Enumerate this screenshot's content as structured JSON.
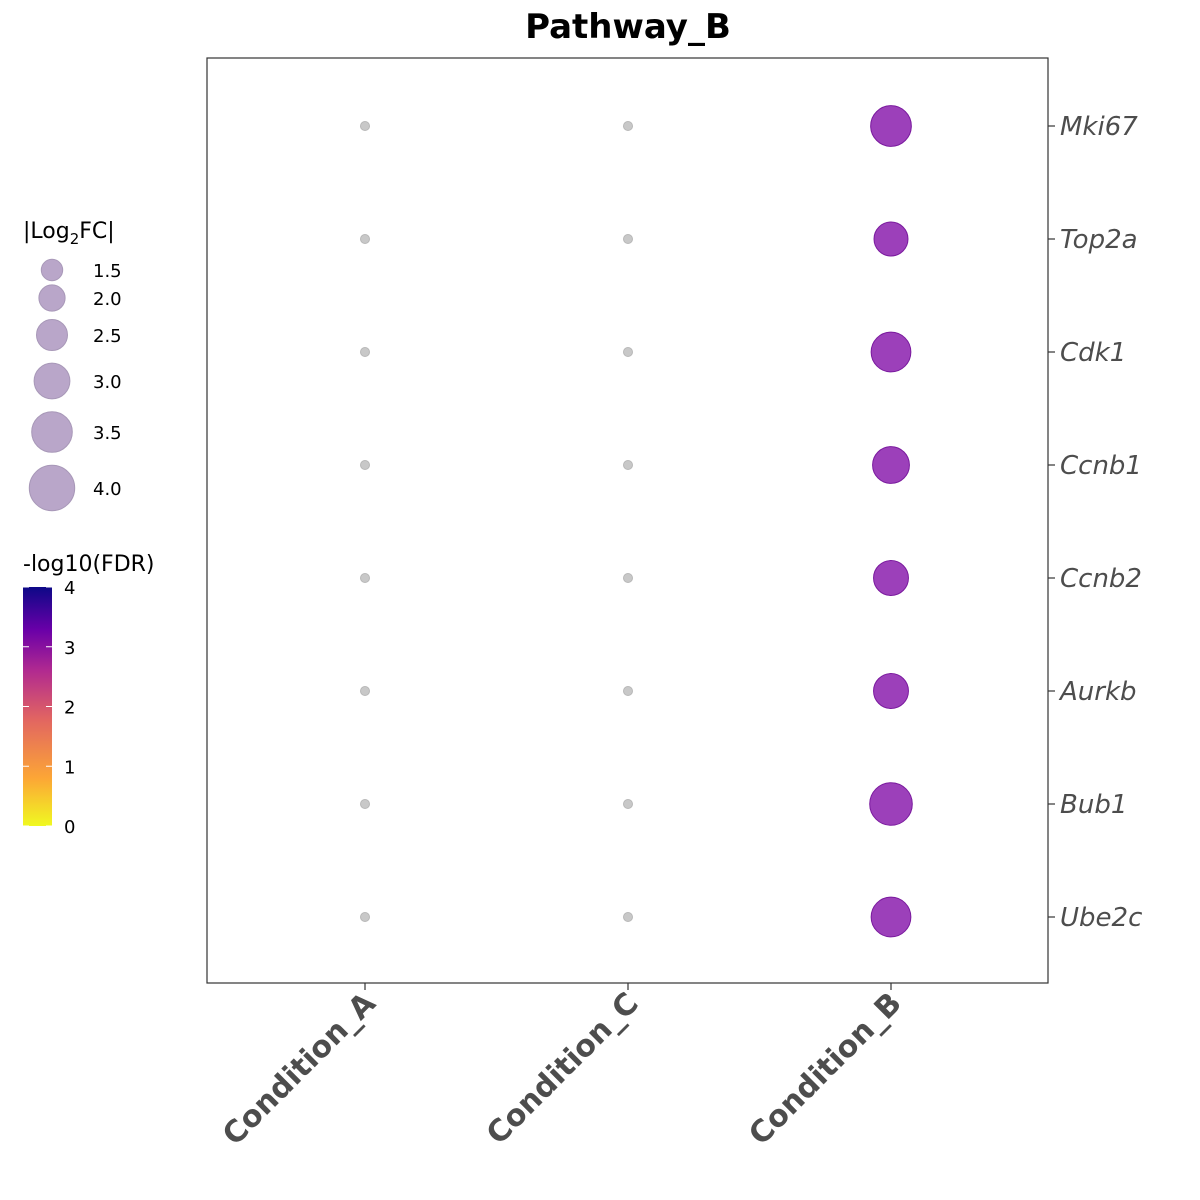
{
  "chart_data": {
    "type": "scatter",
    "title": "Pathway_B",
    "xlabel": "",
    "ylabel": "",
    "categories": [
      "Condition_A",
      "Condition_C",
      "Condition_B"
    ],
    "genes": [
      "Mki67",
      "Top2a",
      "Cdk1",
      "Ccnb1",
      "Ccnb2",
      "Aurkb",
      "Bub1",
      "Ube2c"
    ],
    "points": [
      {
        "gene": "Mki67",
        "condition": "Condition_A",
        "log2fc_abs": 0,
        "neg_log10_fdr": null
      },
      {
        "gene": "Mki67",
        "condition": "Condition_C",
        "log2fc_abs": 0,
        "neg_log10_fdr": null
      },
      {
        "gene": "Mki67",
        "condition": "Condition_B",
        "log2fc_abs": 3.3,
        "neg_log10_fdr": 3.0
      },
      {
        "gene": "Top2a",
        "condition": "Condition_A",
        "log2fc_abs": 0,
        "neg_log10_fdr": null
      },
      {
        "gene": "Top2a",
        "condition": "Condition_C",
        "log2fc_abs": 0,
        "neg_log10_fdr": null
      },
      {
        "gene": "Top2a",
        "condition": "Condition_B",
        "log2fc_abs": 2.6,
        "neg_log10_fdr": 3.0
      },
      {
        "gene": "Cdk1",
        "condition": "Condition_A",
        "log2fc_abs": 0,
        "neg_log10_fdr": null
      },
      {
        "gene": "Cdk1",
        "condition": "Condition_C",
        "log2fc_abs": 0,
        "neg_log10_fdr": null
      },
      {
        "gene": "Cdk1",
        "condition": "Condition_B",
        "log2fc_abs": 3.2,
        "neg_log10_fdr": 3.0
      },
      {
        "gene": "Ccnb1",
        "condition": "Condition_A",
        "log2fc_abs": 0,
        "neg_log10_fdr": null
      },
      {
        "gene": "Ccnb1",
        "condition": "Condition_C",
        "log2fc_abs": 0,
        "neg_log10_fdr": null
      },
      {
        "gene": "Ccnb1",
        "condition": "Condition_B",
        "log2fc_abs": 2.9,
        "neg_log10_fdr": 3.0
      },
      {
        "gene": "Ccnb2",
        "condition": "Condition_A",
        "log2fc_abs": 0,
        "neg_log10_fdr": null
      },
      {
        "gene": "Ccnb2",
        "condition": "Condition_C",
        "log2fc_abs": 0,
        "neg_log10_fdr": null
      },
      {
        "gene": "Ccnb2",
        "condition": "Condition_B",
        "log2fc_abs": 2.7,
        "neg_log10_fdr": 3.0
      },
      {
        "gene": "Aurkb",
        "condition": "Condition_A",
        "log2fc_abs": 0,
        "neg_log10_fdr": null
      },
      {
        "gene": "Aurkb",
        "condition": "Condition_C",
        "log2fc_abs": 0,
        "neg_log10_fdr": null
      },
      {
        "gene": "Aurkb",
        "condition": "Condition_B",
        "log2fc_abs": 2.7,
        "neg_log10_fdr": 3.0
      },
      {
        "gene": "Bub1",
        "condition": "Condition_A",
        "log2fc_abs": 0,
        "neg_log10_fdr": null
      },
      {
        "gene": "Bub1",
        "condition": "Condition_C",
        "log2fc_abs": 0,
        "neg_log10_fdr": null
      },
      {
        "gene": "Bub1",
        "condition": "Condition_B",
        "log2fc_abs": 3.5,
        "neg_log10_fdr": 3.0
      },
      {
        "gene": "Ube2c",
        "condition": "Condition_A",
        "log2fc_abs": 0,
        "neg_log10_fdr": null
      },
      {
        "gene": "Ube2c",
        "condition": "Condition_C",
        "log2fc_abs": 0,
        "neg_log10_fdr": null
      },
      {
        "gene": "Ube2c",
        "condition": "Condition_B",
        "log2fc_abs": 3.2,
        "neg_log10_fdr": 3.0
      }
    ],
    "size_legend": {
      "title_prefix": "|Log",
      "title_sub": "2",
      "title_suffix": "FC|",
      "values": [
        1.5,
        2.0,
        2.5,
        3.0,
        3.5,
        4.0
      ],
      "labels": [
        "1.5",
        "2.0",
        "2.5",
        "3.0",
        "3.5",
        "4.0"
      ]
    },
    "color_legend": {
      "title": "-log10(FDR)",
      "range": [
        0,
        4
      ],
      "ticks": [
        "0",
        "1",
        "2",
        "3",
        "4"
      ],
      "palette": [
        "#f0f921",
        "#fca636",
        "#e16462",
        "#b12a90",
        "#6a00a8",
        "#0d0887"
      ]
    },
    "point_color": "#8b1fae",
    "null_point_color": "#c8c8c8",
    "legend_point_color": "#b9a6c9",
    "grid": false,
    "legend_position": "left"
  }
}
